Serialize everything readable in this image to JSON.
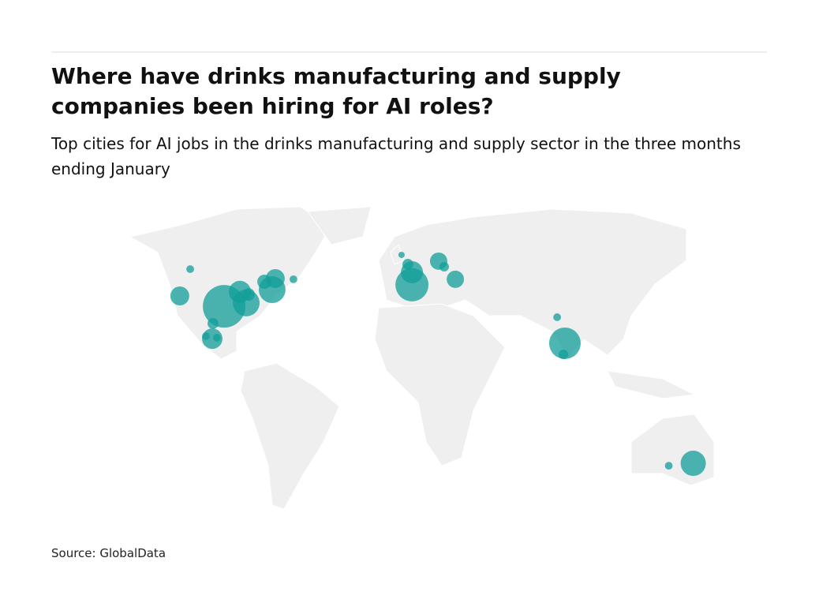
{
  "chart_data": {
    "type": "bubble_map",
    "title": "Where have drinks manufacturing and supply companies been hiring for AI roles?",
    "subtitle": "Top cities for AI jobs in the drinks manufacturing and supply sector in the three months ending January",
    "source": "Source: GlobalData",
    "color": "#119e98",
    "x": [
      -97.0,
      -85.1,
      -88.5,
      -71.1,
      -69.4,
      -75.3,
      -83.8,
      -120.9,
      -115.3,
      -59.6,
      -103.4,
      -103.0,
      -106.8,
      -100.9,
      4.3,
      4.3,
      2.1,
      -1.3,
      18.7,
      21.7,
      27.7,
      86.8,
      86.0,
      82.6,
      156.0,
      142.8
    ],
    "y": [
      31.0,
      32.4,
      37.0,
      37.9,
      42.5,
      41.2,
      35.9,
      35.3,
      46.4,
      42.2,
      17.6,
      23.9,
      18.6,
      18.0,
      39.9,
      45.1,
      48.4,
      52.3,
      49.7,
      47.4,
      42.2,
      15.7,
      11.1,
      26.5,
      -34.0,
      -35.0
    ],
    "sizes": [
      182,
      72,
      49,
      72,
      36,
      20,
      16,
      36,
      6,
      6,
      42,
      12,
      6,
      6,
      110,
      49,
      12,
      4,
      30,
      9,
      30,
      100,
      9,
      6,
      64,
      6
    ]
  }
}
